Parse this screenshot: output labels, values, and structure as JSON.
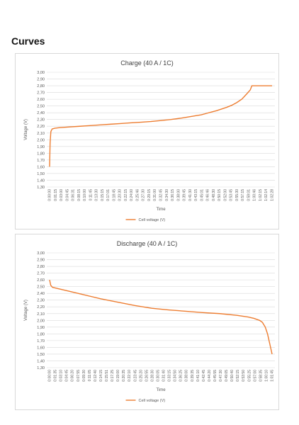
{
  "section": {
    "title": "Curves"
  },
  "colors": {
    "line": "#ED7D31",
    "grid": "#D9D9D9",
    "axis_text": "#595959"
  },
  "chart_data": [
    {
      "type": "line",
      "title": "Charge (40 A / 1C)",
      "xlabel": "Time",
      "ylabel": "Voltage (V)",
      "ylim": [
        1.3,
        3.0
      ],
      "yticks": [
        "3,00",
        "2,90",
        "2,80",
        "2,70",
        "2,60",
        "2,50",
        "2,40",
        "2,30",
        "2,20",
        "2,10",
        "2,00",
        "1,90",
        "1,80",
        "1,70",
        "1,60",
        "1,50",
        "1,40",
        "1,30"
      ],
      "xticks": [
        "0:00:00",
        "0:01:15",
        "0:03:00",
        "0:04:45",
        "0:06:31",
        "0:08:15",
        "0:10:00",
        "0:11:45",
        "0:13:30",
        "0:15:15",
        "0:17:01",
        "0:18:45",
        "0:20:30",
        "0:22:15",
        "0:24:00",
        "0:25:46",
        "0:27:30",
        "0:29:15",
        "0:31:00",
        "0:32:45",
        "0:34:30",
        "0:36:15",
        "0:38:00",
        "0:39:45",
        "0:41:30",
        "0:43:15",
        "0:45:01",
        "0:46:46",
        "0:48:30",
        "0:50:15",
        "0:52:00",
        "0:53:45",
        "0:55:30",
        "0:57:15",
        "0:59:01",
        "1:00:46",
        "1:02:15",
        "1:02:14",
        "1:02:28"
      ],
      "grid": true,
      "legend": "bottom",
      "series": [
        {
          "name": "Cell voltage (V)",
          "points": [
            [
              0,
              1.6
            ],
            [
              0.1,
              1.95
            ],
            [
              0.25,
              2.12
            ],
            [
              0.5,
              2.16
            ],
            [
              1,
              2.17
            ],
            [
              2,
              2.18
            ],
            [
              4,
              2.19
            ],
            [
              6,
              2.2
            ],
            [
              8,
              2.21
            ],
            [
              10,
              2.22
            ],
            [
              12,
              2.23
            ],
            [
              14,
              2.24
            ],
            [
              16,
              2.25
            ],
            [
              18,
              2.26
            ],
            [
              20,
              2.27
            ],
            [
              22,
              2.285
            ],
            [
              24,
              2.3
            ],
            [
              26,
              2.32
            ],
            [
              28,
              2.345
            ],
            [
              30,
              2.37
            ],
            [
              31,
              2.39
            ],
            [
              32,
              2.41
            ],
            [
              33,
              2.43
            ],
            [
              34,
              2.455
            ],
            [
              35,
              2.48
            ],
            [
              36,
              2.51
            ],
            [
              37,
              2.55
            ],
            [
              38,
              2.6
            ],
            [
              39,
              2.68
            ],
            [
              39.7,
              2.74
            ],
            [
              40,
              2.8
            ],
            [
              41,
              2.8
            ],
            [
              42,
              2.8
            ],
            [
              44,
              2.8
            ]
          ]
        }
      ]
    },
    {
      "type": "line",
      "title": "Discharge (40 A / 1C)",
      "xlabel": "Time",
      "ylabel": "Voltage (V)",
      "ylim": [
        1.3,
        3.0
      ],
      "yticks": [
        "3,00",
        "2,90",
        "2,80",
        "2,70",
        "2,60",
        "2,50",
        "2,40",
        "2,30",
        "2,20",
        "2,10",
        "2,00",
        "1,90",
        "1,80",
        "1,70",
        "1,60",
        "1,50",
        "1,40",
        "1,30"
      ],
      "xticks": [
        "0:00:00",
        "0:01:35",
        "0:03:10",
        "0:04:45",
        "0:06:20",
        "0:07:55",
        "0:09:30",
        "0:11:05",
        "0:12:40",
        "0:14:15",
        "0:15:51",
        "0:17:25",
        "0:19:00",
        "0:20:35",
        "0:22:10",
        "0:23:45",
        "0:25:20",
        "0:26:55",
        "0:28:30",
        "0:30:05",
        "0:31:40",
        "0:33:15",
        "0:34:50",
        "0:36:25",
        "0:38:00",
        "0:39:35",
        "0:41:10",
        "0:42:45",
        "0:44:20",
        "0:45:55",
        "0:47:30",
        "0:49:05",
        "0:50:40",
        "0:52:15",
        "0:53:50",
        "0:55:25",
        "0:57:00",
        "0:58:35",
        "1:00:10",
        "1:01:45"
      ],
      "grid": true,
      "legend": "bottom",
      "series": [
        {
          "name": "Cell voltage (V)",
          "points": [
            [
              0,
              2.6
            ],
            [
              0.2,
              2.52
            ],
            [
              0.5,
              2.49
            ],
            [
              1,
              2.48
            ],
            [
              3,
              2.44
            ],
            [
              6,
              2.38
            ],
            [
              9,
              2.32
            ],
            [
              12,
              2.27
            ],
            [
              15,
              2.22
            ],
            [
              18,
              2.18
            ],
            [
              21,
              2.155
            ],
            [
              24,
              2.135
            ],
            [
              27,
              2.115
            ],
            [
              30,
              2.1
            ],
            [
              33,
              2.075
            ],
            [
              35,
              2.05
            ],
            [
              36,
              2.03
            ],
            [
              37,
              2.0
            ],
            [
              37.5,
              1.97
            ],
            [
              38,
              1.9
            ],
            [
              38.4,
              1.8
            ],
            [
              38.8,
              1.65
            ],
            [
              39.2,
              1.5
            ]
          ]
        }
      ]
    }
  ]
}
